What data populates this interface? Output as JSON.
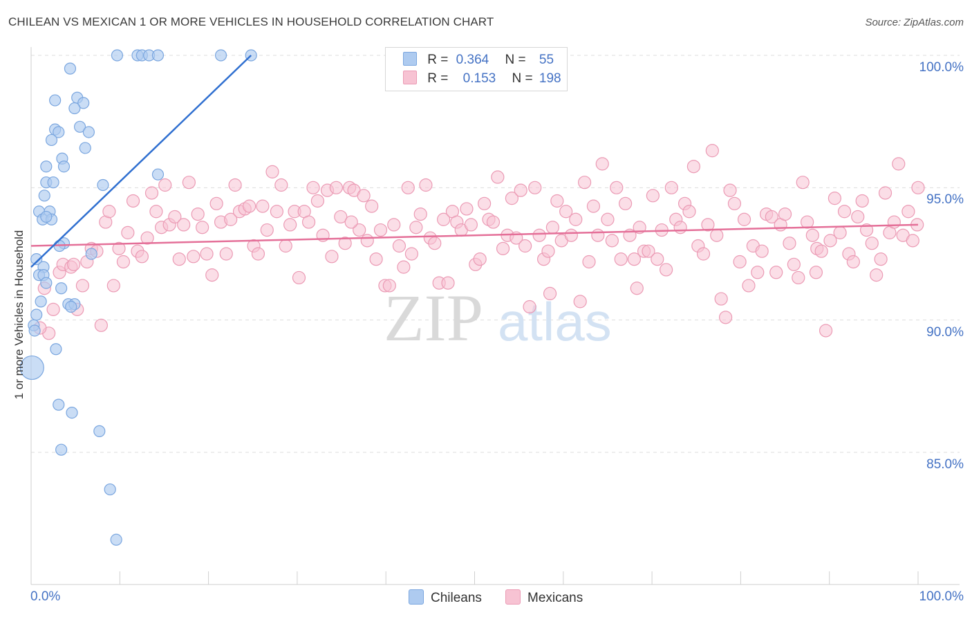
{
  "title": "CHILEAN VS MEXICAN 1 OR MORE VEHICLES IN HOUSEHOLD CORRELATION CHART",
  "source": "Source: ZipAtlas.com",
  "watermark": {
    "zip": "ZIP",
    "atlas": "atlas"
  },
  "legend": {
    "rows": [
      {
        "r_label": "R =",
        "r_value": "0.364",
        "n_label": "N =",
        "n_value": "55"
      },
      {
        "r_label": "R =",
        "r_value": "0.153",
        "n_label": "N =",
        "n_value": "198"
      }
    ]
  },
  "bottom_legend": {
    "chileans": "Chileans",
    "mexicans": "Mexicans"
  },
  "colors": {
    "chileans_fill": "#aecbf0",
    "chileans_stroke": "#7aa6df",
    "chileans_line": "#2f6fd0",
    "mexicans_fill": "#f7c3d3",
    "mexicans_stroke": "#eb9ab4",
    "mexicans_line": "#e46f98",
    "tick_label": "#4472c4",
    "grid": "#dddddd"
  },
  "chart_data": {
    "type": "scatter",
    "title": "CHILEAN VS MEXICAN 1 OR MORE VEHICLES IN HOUSEHOLD CORRELATION CHART",
    "xlabel": "",
    "ylabel": "1 or more Vehicles in Household",
    "xlim": [
      0,
      100
    ],
    "ylim": [
      80.5,
      100.5
    ],
    "x_tick_labels": [
      "0.0%",
      "100.0%"
    ],
    "y_ticks": [
      {
        "value": 100,
        "label": "100.0%"
      },
      {
        "value": 95,
        "label": "95.0%"
      },
      {
        "value": 90,
        "label": "90.0%"
      },
      {
        "value": 85,
        "label": "85.0%"
      }
    ],
    "series": [
      {
        "name": "Chileans",
        "r": 0.364,
        "n": 55,
        "trend": {
          "x": [
            0,
            24.8
          ],
          "y": [
            92.0,
            100.0
          ]
        },
        "points": [
          [
            9.7,
            100
          ],
          [
            12.0,
            100
          ],
          [
            12.5,
            100
          ],
          [
            13.3,
            100
          ],
          [
            14.3,
            100
          ],
          [
            21.4,
            100
          ],
          [
            24.8,
            100
          ],
          [
            4.4,
            99.5
          ],
          [
            5.2,
            98.4
          ],
          [
            2.7,
            98.3
          ],
          [
            5.9,
            98.2
          ],
          [
            4.9,
            98.0
          ],
          [
            2.7,
            97.2
          ],
          [
            5.5,
            97.3
          ],
          [
            6.5,
            97.1
          ],
          [
            3.1,
            97.1
          ],
          [
            2.3,
            96.8
          ],
          [
            6.1,
            96.5
          ],
          [
            3.5,
            96.1
          ],
          [
            1.7,
            95.8
          ],
          [
            3.7,
            95.8
          ],
          [
            14.3,
            95.5
          ],
          [
            1.7,
            95.2
          ],
          [
            2.5,
            95.2
          ],
          [
            8.1,
            95.1
          ],
          [
            1.5,
            94.7
          ],
          [
            0.9,
            94.1
          ],
          [
            2.1,
            94.1
          ],
          [
            1.3,
            93.8
          ],
          [
            2.3,
            93.8
          ],
          [
            3.7,
            92.9
          ],
          [
            3.2,
            92.8
          ],
          [
            6.8,
            92.5
          ],
          [
            0.6,
            92.3
          ],
          [
            1.4,
            92.0
          ],
          [
            0.9,
            91.7
          ],
          [
            1.4,
            91.7
          ],
          [
            1.7,
            91.4
          ],
          [
            3.4,
            91.2
          ],
          [
            1.1,
            90.7
          ],
          [
            4.2,
            90.6
          ],
          [
            4.9,
            90.6
          ],
          [
            4.5,
            90.5
          ],
          [
            0.6,
            90.2
          ],
          [
            0.3,
            89.8
          ],
          [
            0.4,
            89.6
          ],
          [
            2.8,
            88.9
          ],
          [
            0.1,
            88.2
          ],
          [
            3.1,
            86.8
          ],
          [
            4.6,
            86.5
          ],
          [
            7.7,
            85.8
          ],
          [
            3.4,
            85.1
          ],
          [
            8.9,
            83.6
          ],
          [
            9.6,
            81.7
          ],
          [
            1.7,
            93.9
          ]
        ]
      },
      {
        "name": "Mexicans",
        "r": 0.153,
        "n": 198,
        "trend": {
          "x": [
            0,
            100
          ],
          "y": [
            92.8,
            93.6
          ]
        },
        "points": [
          [
            1.5,
            91.2
          ],
          [
            2.0,
            89.5
          ],
          [
            2.5,
            90.4
          ],
          [
            3.2,
            91.8
          ],
          [
            3.6,
            92.1
          ],
          [
            4.5,
            92.0
          ],
          [
            5.2,
            90.4
          ],
          [
            5.8,
            91.3
          ],
          [
            6.3,
            92.2
          ],
          [
            6.8,
            92.7
          ],
          [
            7.4,
            92.6
          ],
          [
            7.9,
            89.8
          ],
          [
            8.4,
            93.7
          ],
          [
            8.8,
            94.1
          ],
          [
            9.3,
            91.3
          ],
          [
            9.9,
            92.7
          ],
          [
            10.4,
            92.2
          ],
          [
            10.9,
            93.3
          ],
          [
            11.5,
            94.5
          ],
          [
            12.0,
            92.6
          ],
          [
            12.5,
            92.4
          ],
          [
            13.1,
            93.1
          ],
          [
            13.6,
            94.8
          ],
          [
            14.1,
            94.1
          ],
          [
            14.7,
            93.5
          ],
          [
            15.1,
            95.1
          ],
          [
            15.6,
            93.6
          ],
          [
            16.2,
            93.9
          ],
          [
            16.7,
            92.3
          ],
          [
            17.2,
            93.6
          ],
          [
            17.8,
            95.2
          ],
          [
            18.3,
            92.4
          ],
          [
            18.8,
            94.0
          ],
          [
            19.3,
            93.5
          ],
          [
            19.8,
            92.5
          ],
          [
            20.4,
            91.7
          ],
          [
            20.9,
            94.4
          ],
          [
            21.4,
            93.7
          ],
          [
            22.0,
            92.5
          ],
          [
            22.5,
            93.8
          ],
          [
            23.0,
            95.1
          ],
          [
            23.5,
            94.1
          ],
          [
            24.1,
            94.2
          ],
          [
            24.6,
            94.3
          ],
          [
            25.1,
            92.8
          ],
          [
            25.6,
            92.5
          ],
          [
            26.1,
            94.3
          ],
          [
            26.6,
            93.4
          ],
          [
            27.2,
            95.6
          ],
          [
            27.7,
            94.1
          ],
          [
            28.2,
            95.1
          ],
          [
            28.7,
            92.8
          ],
          [
            29.2,
            93.6
          ],
          [
            29.7,
            94.1
          ],
          [
            30.2,
            91.6
          ],
          [
            30.8,
            94.1
          ],
          [
            31.3,
            93.7
          ],
          [
            31.8,
            95.0
          ],
          [
            32.3,
            94.5
          ],
          [
            32.9,
            93.2
          ],
          [
            33.4,
            94.9
          ],
          [
            33.9,
            92.4
          ],
          [
            34.4,
            95.0
          ],
          [
            34.9,
            93.9
          ],
          [
            35.4,
            92.9
          ],
          [
            35.9,
            95.0
          ],
          [
            36.4,
            94.9
          ],
          [
            37.0,
            93.4
          ],
          [
            37.5,
            94.7
          ],
          [
            37.9,
            93.0
          ],
          [
            38.4,
            94.3
          ],
          [
            38.9,
            92.3
          ],
          [
            39.4,
            93.4
          ],
          [
            39.9,
            91.3
          ],
          [
            40.4,
            91.3
          ],
          [
            40.9,
            93.6
          ],
          [
            41.5,
            92.8
          ],
          [
            42.0,
            92.0
          ],
          [
            42.5,
            95.0
          ],
          [
            42.9,
            92.5
          ],
          [
            43.4,
            93.5
          ],
          [
            43.9,
            94.0
          ],
          [
            44.5,
            95.1
          ],
          [
            45.0,
            93.1
          ],
          [
            45.5,
            92.9
          ],
          [
            46.0,
            91.4
          ],
          [
            46.5,
            93.8
          ],
          [
            47.0,
            91.4
          ],
          [
            47.5,
            94.1
          ],
          [
            48.0,
            93.7
          ],
          [
            48.5,
            93.4
          ],
          [
            49.1,
            94.2
          ],
          [
            49.6,
            93.6
          ],
          [
            50.1,
            92.1
          ],
          [
            50.6,
            92.3
          ],
          [
            51.1,
            94.4
          ],
          [
            51.6,
            93.8
          ],
          [
            52.1,
            93.7
          ],
          [
            52.6,
            95.4
          ],
          [
            53.2,
            92.7
          ],
          [
            53.7,
            93.2
          ],
          [
            54.2,
            94.6
          ],
          [
            54.7,
            93.1
          ],
          [
            55.2,
            94.9
          ],
          [
            55.7,
            92.8
          ],
          [
            56.2,
            90.5
          ],
          [
            56.8,
            95.0
          ],
          [
            57.3,
            93.2
          ],
          [
            57.8,
            92.3
          ],
          [
            58.3,
            92.6
          ],
          [
            58.8,
            93.5
          ],
          [
            59.3,
            94.5
          ],
          [
            59.8,
            93.0
          ],
          [
            60.3,
            94.1
          ],
          [
            60.9,
            93.2
          ],
          [
            61.4,
            93.8
          ],
          [
            61.9,
            90.7
          ],
          [
            62.4,
            95.2
          ],
          [
            62.9,
            92.2
          ],
          [
            63.4,
            94.3
          ],
          [
            63.9,
            93.2
          ],
          [
            64.4,
            95.9
          ],
          [
            65.0,
            93.8
          ],
          [
            65.5,
            93.0
          ],
          [
            66.0,
            95.0
          ],
          [
            66.5,
            92.3
          ],
          [
            67.0,
            94.4
          ],
          [
            67.5,
            93.2
          ],
          [
            68.0,
            92.3
          ],
          [
            68.6,
            93.5
          ],
          [
            69.1,
            92.6
          ],
          [
            69.6,
            92.6
          ],
          [
            70.1,
            94.7
          ],
          [
            70.6,
            92.3
          ],
          [
            71.1,
            93.4
          ],
          [
            71.6,
            91.9
          ],
          [
            72.2,
            95.0
          ],
          [
            72.7,
            93.8
          ],
          [
            73.2,
            93.5
          ],
          [
            73.7,
            94.4
          ],
          [
            74.2,
            94.1
          ],
          [
            74.7,
            95.8
          ],
          [
            75.2,
            92.8
          ],
          [
            75.8,
            92.5
          ],
          [
            76.3,
            93.6
          ],
          [
            76.8,
            96.4
          ],
          [
            77.3,
            93.2
          ],
          [
            77.8,
            90.8
          ],
          [
            78.3,
            90.1
          ],
          [
            78.8,
            94.9
          ],
          [
            79.3,
            94.4
          ],
          [
            79.9,
            92.2
          ],
          [
            80.4,
            93.8
          ],
          [
            80.9,
            91.3
          ],
          [
            81.4,
            92.8
          ],
          [
            81.9,
            91.8
          ],
          [
            82.4,
            92.6
          ],
          [
            82.9,
            94.0
          ],
          [
            83.5,
            93.9
          ],
          [
            84.0,
            91.8
          ],
          [
            84.5,
            93.6
          ],
          [
            85.0,
            94.0
          ],
          [
            85.5,
            92.9
          ],
          [
            86.0,
            92.1
          ],
          [
            86.5,
            91.6
          ],
          [
            87.0,
            95.2
          ],
          [
            87.5,
            93.7
          ],
          [
            88.1,
            93.2
          ],
          [
            88.6,
            92.7
          ],
          [
            89.1,
            92.6
          ],
          [
            89.6,
            89.6
          ],
          [
            90.1,
            93.0
          ],
          [
            90.6,
            94.6
          ],
          [
            91.2,
            93.3
          ],
          [
            91.7,
            94.1
          ],
          [
            92.2,
            92.5
          ],
          [
            92.7,
            92.2
          ],
          [
            93.2,
            93.9
          ],
          [
            93.7,
            94.5
          ],
          [
            94.2,
            93.4
          ],
          [
            94.8,
            92.9
          ],
          [
            95.3,
            91.7
          ],
          [
            95.8,
            92.3
          ],
          [
            96.3,
            94.8
          ],
          [
            96.8,
            93.3
          ],
          [
            97.3,
            93.7
          ],
          [
            97.8,
            95.9
          ],
          [
            98.3,
            93.2
          ],
          [
            98.9,
            94.1
          ],
          [
            99.4,
            93.0
          ],
          [
            99.9,
            93.6
          ],
          [
            100.0,
            95.0
          ],
          [
            1.0,
            89.7
          ],
          [
            4.8,
            92.1
          ],
          [
            36.1,
            93.7
          ],
          [
            58.5,
            91.0
          ],
          [
            68.3,
            91.2
          ],
          [
            88.5,
            91.8
          ]
        ]
      }
    ]
  }
}
